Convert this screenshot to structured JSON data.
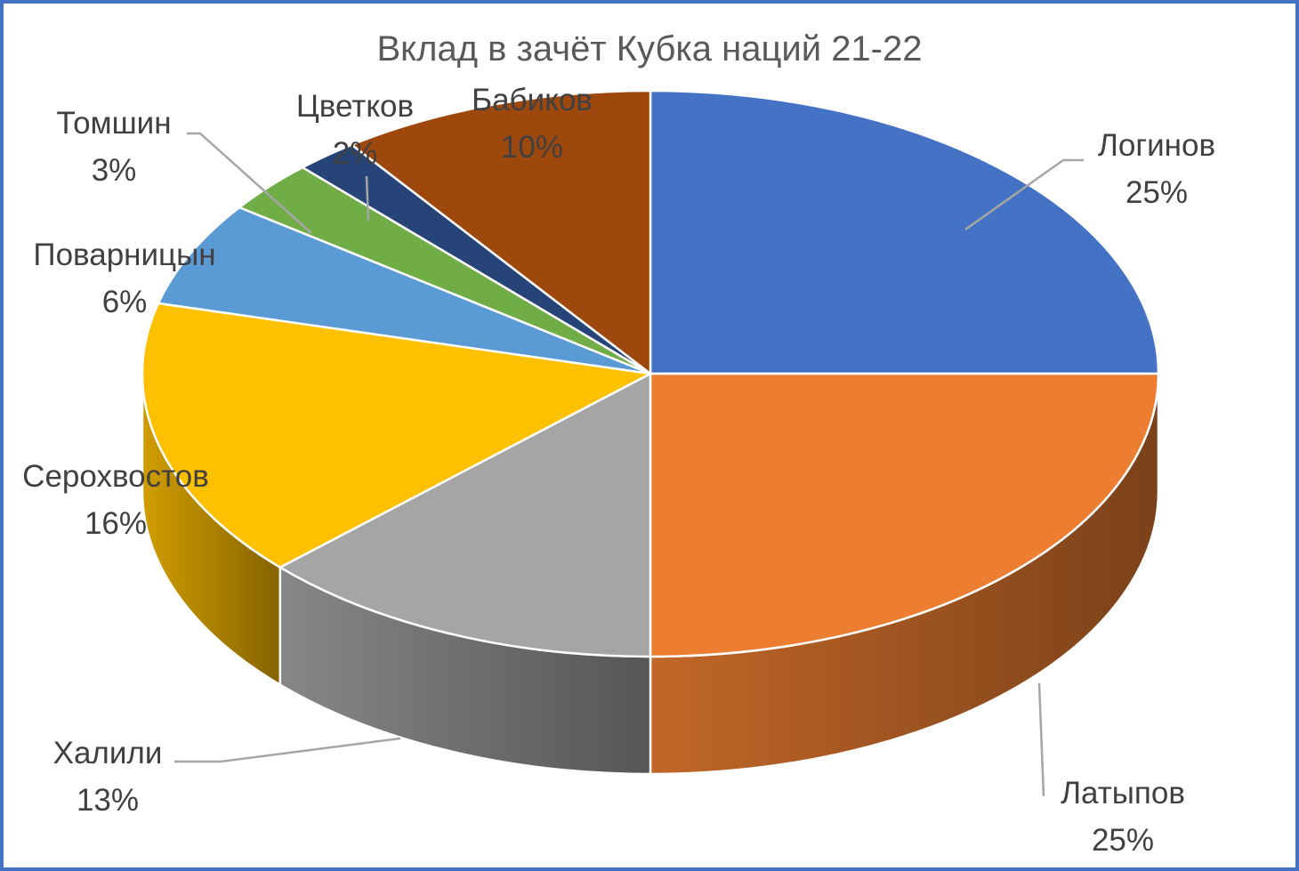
{
  "chart_data": {
    "type": "pie",
    "title": "Вклад в зачёт Кубка наций 21-22",
    "three_d": true,
    "legend": "none",
    "slices": [
      {
        "name": "Логинов",
        "value": 25,
        "label": "25%",
        "color": "#4472c4"
      },
      {
        "name": "Латыпов",
        "value": 25,
        "label": "25%",
        "color": "#ed7d31"
      },
      {
        "name": "Халили",
        "value": 13,
        "label": "13%",
        "color": "#a5a5a5"
      },
      {
        "name": "Серохвостов",
        "value": 16,
        "label": "16%",
        "color": "#ffc000"
      },
      {
        "name": "Поварницын",
        "value": 6,
        "label": "6%",
        "color": "#5b9bd5"
      },
      {
        "name": "Томшин",
        "value": 3,
        "label": "3%",
        "color": "#70ad47"
      },
      {
        "name": "Цветков",
        "value": 2,
        "label": "2%",
        "color": "#264478"
      },
      {
        "name": "Бабиков",
        "value": 10,
        "label": "10%",
        "color": "#9e480e"
      }
    ]
  }
}
